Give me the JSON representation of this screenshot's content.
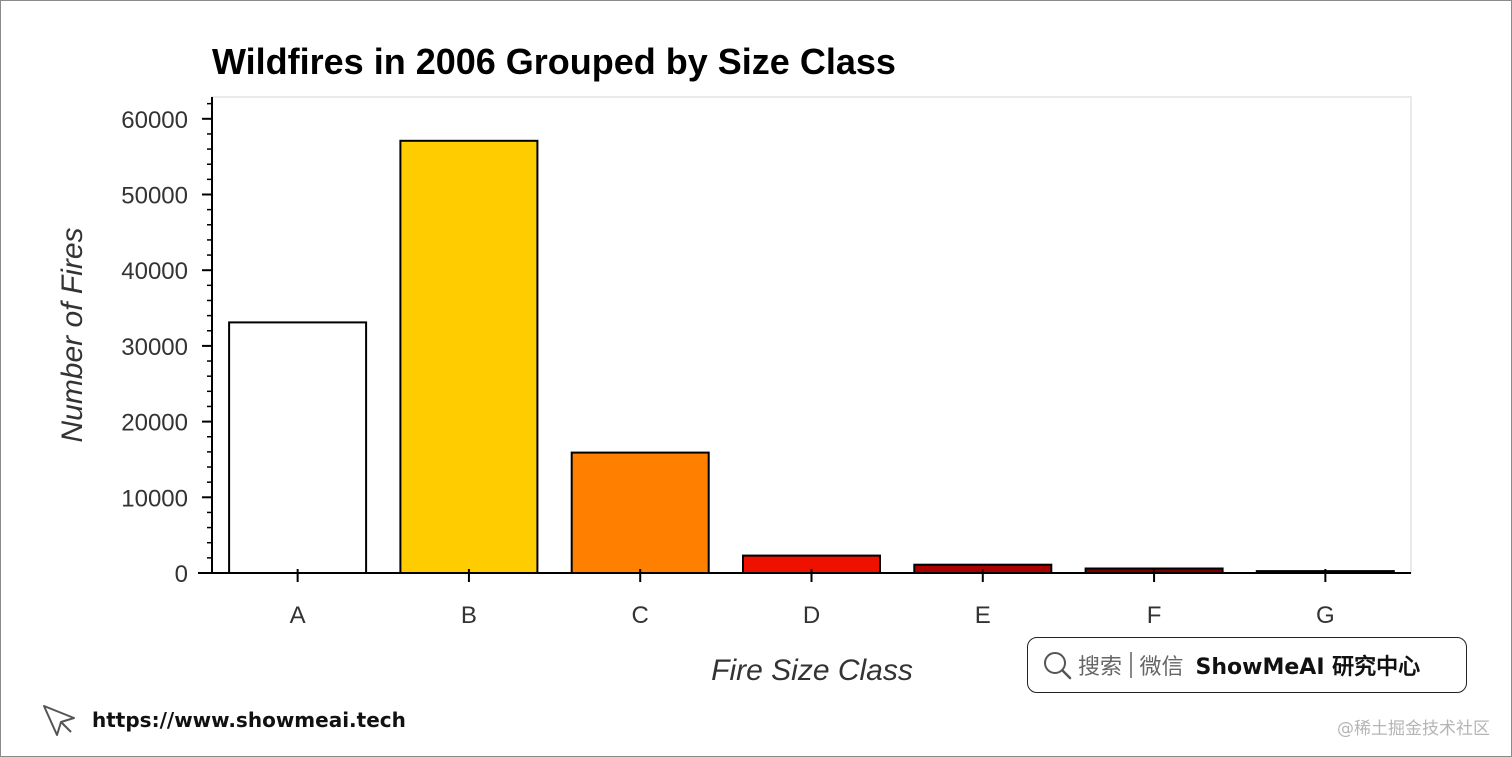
{
  "chart_data": {
    "type": "bar",
    "title": "Wildfires in 2006 Grouped by Size Class",
    "xlabel": "Fire Size Class",
    "ylabel": "Number of Fires",
    "categories": [
      "A",
      "B",
      "C",
      "D",
      "E",
      "F",
      "G"
    ],
    "values": [
      33100,
      57100,
      15900,
      2300,
      1100,
      600,
      250
    ],
    "colors": [
      "#ffffff",
      "#ffcc00",
      "#ff7f00",
      "#ee1100",
      "#aa0000",
      "#7a0000",
      "#4a0000"
    ],
    "ylim": [
      0,
      63000
    ],
    "yticks": [
      0,
      10000,
      20000,
      30000,
      40000,
      50000,
      60000
    ],
    "grid": false,
    "legend": "none"
  },
  "search_box": {
    "search_label": "搜索",
    "channel_label": "微信",
    "brand_label": "ShowMeAI 研究中心"
  },
  "footer": {
    "url": "https://www.showmeai.tech",
    "watermark": "@稀土掘金技术社区"
  }
}
